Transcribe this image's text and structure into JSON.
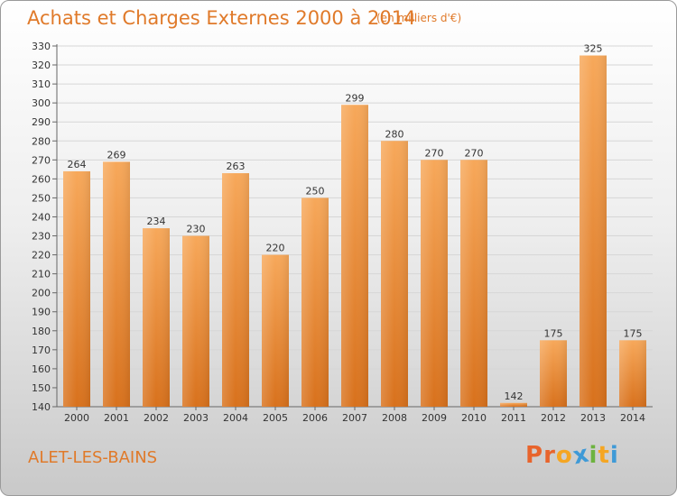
{
  "header": {
    "title": "Achats et Charges Externes 2000 à 2014",
    "unit": "(en milliers d'€)"
  },
  "footer": {
    "commune": "ALET-LES-BAINS",
    "logo_letters": [
      "P",
      "r",
      "o",
      "x",
      "i",
      "t",
      "i"
    ]
  },
  "colors": {
    "bar_top": "#f7a85a",
    "bar_bottom": "#d8711c",
    "title": "#e07a2a",
    "logo_letters": [
      "#e8642c",
      "#e8642c",
      "#f5a623",
      "#3f9ad7",
      "#6db33f",
      "#f5a623",
      "#3f9ad7"
    ]
  },
  "chart_data": {
    "type": "bar",
    "title": "Achats et Charges Externes 2000 à 2014",
    "categories": [
      "2000",
      "2001",
      "2002",
      "2003",
      "2004",
      "2005",
      "2006",
      "2007",
      "2008",
      "2009",
      "2010",
      "2011",
      "2012",
      "2013",
      "2014"
    ],
    "values": [
      264,
      269,
      234,
      230,
      263,
      220,
      250,
      299,
      280,
      270,
      270,
      142,
      175,
      325,
      175
    ],
    "xlabel": "",
    "ylabel": "",
    "ylim": [
      140,
      330
    ],
    "yticks": [
      140,
      150,
      160,
      170,
      180,
      190,
      200,
      210,
      220,
      230,
      240,
      250,
      260,
      270,
      280,
      290,
      300,
      310,
      320,
      330
    ],
    "grid": true
  }
}
